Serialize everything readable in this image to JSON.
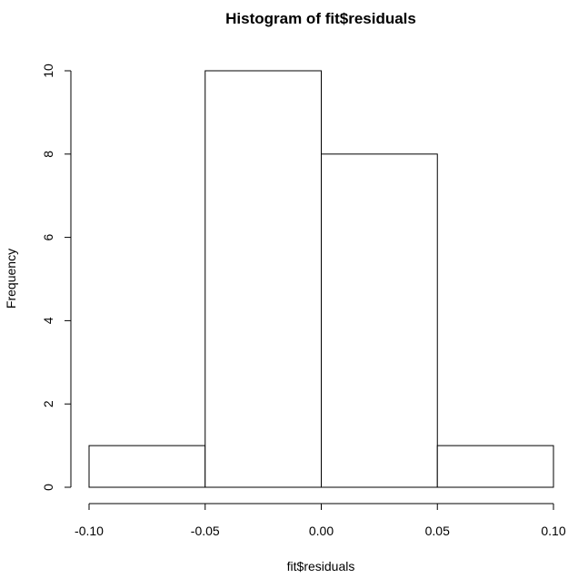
{
  "chart_data": {
    "type": "bar",
    "title": "Histogram of fit$residuals",
    "xlabel": "fit$residuals",
    "ylabel": "Frequency",
    "bins": [
      {
        "from": -0.1,
        "to": -0.05,
        "count": 1
      },
      {
        "from": -0.05,
        "to": 0.0,
        "count": 10
      },
      {
        "from": 0.0,
        "to": 0.05,
        "count": 8
      },
      {
        "from": 0.05,
        "to": 0.1,
        "count": 1
      }
    ],
    "xlim": [
      -0.1,
      0.1
    ],
    "ylim": [
      0,
      10
    ],
    "x_ticks": [
      {
        "value": -0.1,
        "label": "-0.10"
      },
      {
        "value": -0.05,
        "label": "-0.05"
      },
      {
        "value": 0.0,
        "label": "0.00"
      },
      {
        "value": 0.05,
        "label": "0.05"
      },
      {
        "value": 0.1,
        "label": "0.10"
      }
    ],
    "y_ticks": [
      {
        "value": 0,
        "label": "0"
      },
      {
        "value": 2,
        "label": "2"
      },
      {
        "value": 4,
        "label": "4"
      },
      {
        "value": 6,
        "label": "6"
      },
      {
        "value": 8,
        "label": "8"
      },
      {
        "value": 10,
        "label": "10"
      }
    ],
    "grid": false,
    "bar_fill": "#ffffff",
    "bar_stroke": "#000000"
  }
}
